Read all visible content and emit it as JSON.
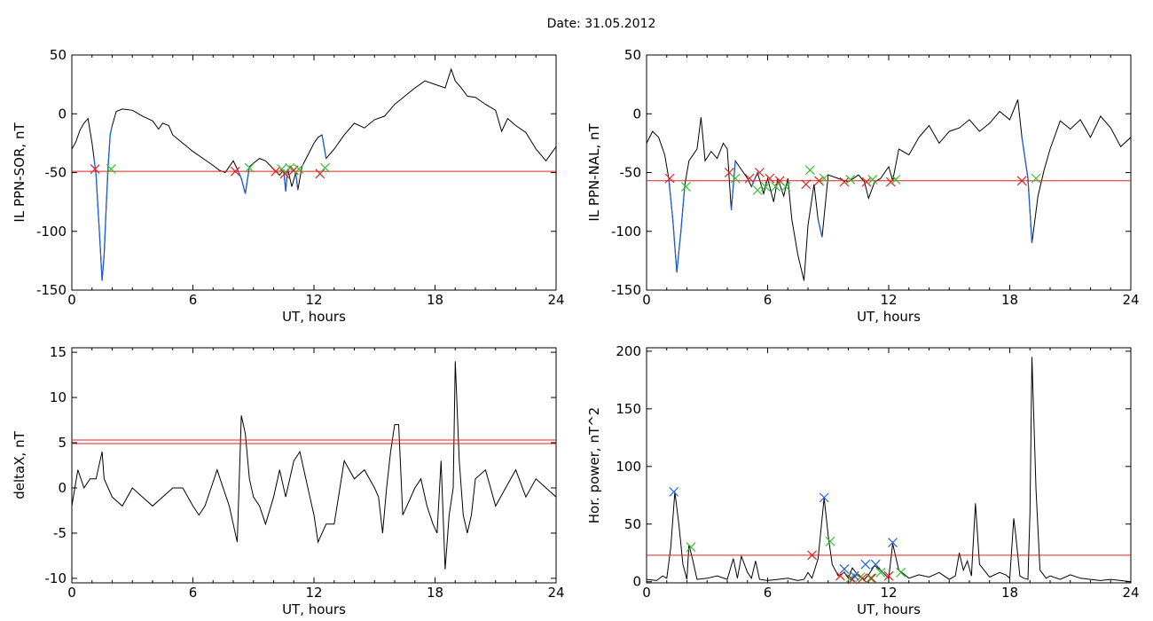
{
  "figure": {
    "title": "Date:  31.05.2012"
  },
  "chart_data": [
    {
      "id": "p1",
      "type": "line",
      "ylabel": "IL PPN-SOR, nT",
      "xlabel": "UT, hours",
      "xlim": [
        0,
        24
      ],
      "ylim": [
        -150,
        50
      ],
      "xticks": [
        "0",
        "6",
        "12",
        "18",
        "24"
      ],
      "yticks": [
        "50",
        "0",
        "-50",
        "-100",
        "-150"
      ],
      "threshold": -49,
      "colors": {
        "trace": "#000000",
        "event": "#1f5fd6",
        "threshold": "#e02020",
        "start": "#e02020",
        "end": "#30c030"
      },
      "series": [
        {
          "x": [
            0,
            0.2,
            0.4,
            0.6,
            0.8,
            1.0,
            1.1,
            1.2,
            1.4,
            1.5,
            1.6,
            1.7,
            1.8,
            1.9,
            2.0,
            2.2,
            2.5,
            3.0,
            3.5,
            4.0,
            4.3,
            4.5,
            4.8,
            5.0,
            5.5,
            6.0,
            6.5,
            7.0,
            7.3,
            7.6,
            8.0,
            8.2,
            8.4,
            8.6,
            8.8,
            9.0,
            9.3,
            9.6,
            10.0,
            10.3,
            10.5,
            10.6,
            10.7,
            10.9,
            11.1,
            11.2,
            11.4,
            11.7,
            12.0,
            12.2,
            12.4,
            12.6,
            13.0,
            13.5,
            14.0,
            14.5,
            15.0,
            15.5,
            16.0,
            16.5,
            17.0,
            17.5,
            18.0,
            18.5,
            18.8,
            19.0,
            19.3,
            19.6,
            20.0,
            20.5,
            21.0,
            21.3,
            21.6,
            22.0,
            22.5,
            23.0,
            23.5,
            24.0
          ],
          "y": [
            -30,
            -24,
            -14,
            -8,
            -4,
            -25,
            -38,
            -52,
            -110,
            -142,
            -120,
            -80,
            -45,
            -18,
            -10,
            2,
            4,
            3,
            -2,
            -6,
            -13,
            -8,
            -10,
            -18,
            -25,
            -32,
            -38,
            -44,
            -48,
            -50,
            -40,
            -47,
            -55,
            -68,
            -45,
            -42,
            -38,
            -40,
            -47,
            -52,
            -48,
            -66,
            -47,
            -62,
            -50,
            -65,
            -45,
            -35,
            -25,
            -20,
            -18,
            -38,
            -30,
            -18,
            -8,
            -12,
            -5,
            -2,
            8,
            15,
            22,
            28,
            25,
            22,
            38,
            28,
            22,
            15,
            14,
            8,
            3,
            -15,
            -4,
            -10,
            -16,
            -30,
            -40,
            -28
          ]
        }
      ],
      "events": [
        {
          "start": 1.15,
          "end": 1.95,
          "y_start": -47,
          "y_end": -47
        },
        {
          "start": 8.1,
          "end": 8.8,
          "y_start": -49,
          "y_end": -46
        },
        {
          "start": 10.1,
          "end": 10.4,
          "y_start": -49,
          "y_end": -47
        },
        {
          "start": 10.55,
          "end": 10.8,
          "y_start": -51,
          "y_end": -46
        },
        {
          "start": 11.0,
          "end": 11.25,
          "y_start": -48,
          "y_end": -47
        },
        {
          "start": 12.3,
          "end": 12.55,
          "y_start": -51,
          "y_end": -46
        }
      ]
    },
    {
      "id": "p2",
      "type": "line",
      "ylabel": "IL PPN-NAL, nT",
      "xlabel": "UT, hours",
      "xlim": [
        0,
        24
      ],
      "ylim": [
        -150,
        50
      ],
      "xticks": [
        "0",
        "6",
        "12",
        "18",
        "24"
      ],
      "yticks": [
        "50",
        "0",
        "-50",
        "-100",
        "-150"
      ],
      "threshold": -57,
      "colors": {
        "trace": "#000000",
        "event": "#1f5fd6",
        "threshold": "#e02020",
        "start": "#e02020",
        "end": "#30c030"
      },
      "series": [
        {
          "x": [
            0,
            0.3,
            0.6,
            0.9,
            1.1,
            1.3,
            1.5,
            1.7,
            1.9,
            2.1,
            2.5,
            2.7,
            2.9,
            3.2,
            3.5,
            3.8,
            4.0,
            4.2,
            4.4,
            4.6,
            5.0,
            5.2,
            5.5,
            5.8,
            6.0,
            6.3,
            6.5,
            6.8,
            7.0,
            7.2,
            7.5,
            7.8,
            8.0,
            8.3,
            8.5,
            8.7,
            9.0,
            9.5,
            10.0,
            10.5,
            10.8,
            11.0,
            11.3,
            11.6,
            12.0,
            12.2,
            12.5,
            13.0,
            13.5,
            14.0,
            14.5,
            15.0,
            15.5,
            16.0,
            16.5,
            17.0,
            17.5,
            18.0,
            18.4,
            18.6,
            18.9,
            19.1,
            19.4,
            19.7,
            20.0,
            20.5,
            21.0,
            21.5,
            22.0,
            22.5,
            23.0,
            23.5,
            24.0
          ],
          "y": [
            -25,
            -15,
            -20,
            -35,
            -55,
            -90,
            -135,
            -100,
            -60,
            -40,
            -30,
            -3,
            -40,
            -32,
            -38,
            -25,
            -30,
            -82,
            -40,
            -45,
            -55,
            -62,
            -50,
            -68,
            -55,
            -75,
            -55,
            -70,
            -55,
            -90,
            -120,
            -142,
            -95,
            -60,
            -90,
            -105,
            -52,
            -55,
            -58,
            -52,
            -58,
            -72,
            -58,
            -55,
            -45,
            -57,
            -30,
            -35,
            -20,
            -10,
            -25,
            -15,
            -12,
            -5,
            -15,
            -8,
            2,
            -5,
            12,
            -20,
            -55,
            -110,
            -70,
            -48,
            -30,
            -6,
            -13,
            -5,
            -20,
            -2,
            -12,
            -28,
            -20
          ]
        }
      ],
      "events": [
        {
          "start": 1.15,
          "end": 1.95,
          "y_start": -55,
          "y_end": -62
        },
        {
          "start": 4.1,
          "end": 4.4,
          "y_start": -50,
          "y_end": -55
        },
        {
          "start": 5.1,
          "end": 5.5,
          "y_start": -55,
          "y_end": -65
        },
        {
          "start": 5.6,
          "end": 5.9,
          "y_start": -50,
          "y_end": -62
        },
        {
          "start": 6.1,
          "end": 6.4,
          "y_start": -55,
          "y_end": -62
        },
        {
          "start": 6.6,
          "end": 6.9,
          "y_start": -57,
          "y_end": -62
        },
        {
          "start": 7.9,
          "end": 8.1,
          "y_start": -60,
          "y_end": -48
        },
        {
          "start": 8.55,
          "end": 8.8,
          "y_start": -57,
          "y_end": -55
        },
        {
          "start": 9.8,
          "end": 10.1,
          "y_start": -58,
          "y_end": -56
        },
        {
          "start": 10.9,
          "end": 11.2,
          "y_start": -58,
          "y_end": -56
        },
        {
          "start": 12.1,
          "end": 12.35,
          "y_start": -58,
          "y_end": -56
        },
        {
          "start": 18.6,
          "end": 19.3,
          "y_start": -57,
          "y_end": -55
        }
      ]
    },
    {
      "id": "p3",
      "type": "line",
      "ylabel": "deltaX, nT",
      "xlabel": "UT, hours",
      "xlim": [
        0,
        24
      ],
      "ylim": [
        -10.5,
        15.5
      ],
      "xticks": [
        "0",
        "6",
        "12",
        "18",
        "24"
      ],
      "yticks": [
        "15",
        "10",
        "5",
        "0",
        "-5",
        "-10"
      ],
      "thresholds": [
        5.3,
        4.9
      ],
      "colors": {
        "trace": "#000000",
        "threshold": "#e02020"
      },
      "series": [
        {
          "x": [
            0,
            0.3,
            0.6,
            0.9,
            1.2,
            1.5,
            1.6,
            1.8,
            2.0,
            2.5,
            3.0,
            3.5,
            4.0,
            4.5,
            5.0,
            5.5,
            6.0,
            6.3,
            6.6,
            6.9,
            7.2,
            7.5,
            7.8,
            8.0,
            8.2,
            8.4,
            8.6,
            8.8,
            9.0,
            9.3,
            9.6,
            10.0,
            10.3,
            10.6,
            11.0,
            11.3,
            11.5,
            11.8,
            12.0,
            12.2,
            12.4,
            12.6,
            13.0,
            13.5,
            14.0,
            14.5,
            15.0,
            15.2,
            15.4,
            15.6,
            15.8,
            16.0,
            16.2,
            16.4,
            16.6,
            17.0,
            17.3,
            17.6,
            17.9,
            18.1,
            18.3,
            18.5,
            18.7,
            18.9,
            19.0,
            19.2,
            19.4,
            19.6,
            19.8,
            20.0,
            20.5,
            21.0,
            21.5,
            22.0,
            22.5,
            23.0,
            23.5,
            24.0
          ],
          "y": [
            -2,
            2,
            0,
            1,
            1,
            4,
            1,
            0,
            -1,
            -2,
            0,
            -1,
            -2,
            -1,
            0,
            0,
            -2,
            -3,
            -2,
            0,
            2,
            0,
            -2,
            -4,
            -6,
            8,
            6,
            1,
            -1,
            -2,
            -4,
            -1,
            2,
            -1,
            3,
            4,
            2,
            -1,
            -3,
            -6,
            -5,
            -4,
            -4,
            3,
            1,
            2,
            0,
            -1,
            -5,
            0,
            4,
            7,
            7,
            -3,
            -2,
            0,
            1,
            -2,
            -4,
            -5,
            3,
            -9,
            -3,
            0,
            14,
            3,
            -3,
            -5,
            -3,
            1,
            2,
            -2,
            0,
            2,
            -1,
            1,
            0,
            -1
          ]
        }
      ]
    },
    {
      "id": "p4",
      "type": "line",
      "ylabel": "Hor. power, nT^2",
      "xlabel": "UT, hours",
      "xlim": [
        0,
        24
      ],
      "ylim": [
        -1,
        203
      ],
      "xticks": [
        "0",
        "6",
        "12",
        "18",
        "24"
      ],
      "yticks": [
        "200",
        "150",
        "100",
        "50",
        "0"
      ],
      "threshold": 23,
      "colors": {
        "trace": "#000000",
        "threshold": "#e02020",
        "peak": "#1f5fd6",
        "start": "#e02020",
        "end": "#30c030"
      },
      "series": [
        {
          "x": [
            0,
            0.5,
            0.8,
            1.0,
            1.2,
            1.4,
            1.6,
            1.8,
            2.0,
            2.1,
            2.3,
            2.5,
            3.0,
            3.5,
            4.0,
            4.3,
            4.5,
            4.7,
            5.0,
            5.2,
            5.4,
            5.6,
            6.0,
            6.5,
            7.0,
            7.5,
            7.8,
            8.0,
            8.2,
            8.5,
            8.8,
            9.0,
            9.2,
            9.5,
            9.8,
            10.0,
            10.2,
            10.5,
            10.8,
            11.0,
            11.3,
            11.6,
            12.0,
            12.2,
            12.5,
            12.8,
            13.0,
            13.5,
            14.0,
            14.5,
            15.0,
            15.3,
            15.5,
            15.7,
            15.9,
            16.1,
            16.3,
            16.5,
            17.0,
            17.5,
            17.8,
            18.0,
            18.2,
            18.3,
            18.5,
            18.7,
            18.9,
            19.0,
            19.1,
            19.3,
            19.5,
            19.8,
            20.0,
            20.5,
            21.0,
            21.5,
            22.0,
            22.5,
            23.0,
            23.5,
            24.0
          ],
          "y": [
            2,
            1,
            5,
            3,
            30,
            78,
            50,
            15,
            2,
            32,
            18,
            2,
            3,
            5,
            2,
            20,
            3,
            22,
            8,
            3,
            18,
            2,
            1,
            2,
            3,
            1,
            2,
            8,
            3,
            20,
            73,
            40,
            15,
            5,
            8,
            3,
            12,
            5,
            2,
            6,
            14,
            10,
            3,
            33,
            10,
            6,
            3,
            6,
            4,
            8,
            2,
            5,
            25,
            10,
            18,
            5,
            68,
            15,
            4,
            8,
            6,
            3,
            55,
            40,
            5,
            3,
            2,
            60,
            195,
            80,
            10,
            3,
            5,
            2,
            6,
            3,
            2,
            1,
            2,
            1,
            0
          ]
        }
      ],
      "events": [
        {
          "peak": 1.35,
          "peak_y": 78,
          "start_y": 23,
          "end": 2.2,
          "end_y": 30
        },
        {
          "peak": 8.8,
          "peak_y": 73,
          "start": 8.2,
          "start_y": 23,
          "end": 9.1,
          "end_y": 35
        },
        {
          "peak": 9.8,
          "peak_y": 11,
          "start": 9.6,
          "start_y": 5,
          "end": 10.1,
          "end_y": 3
        },
        {
          "peak": 10.3,
          "peak_y": 5,
          "start": 10.2,
          "start_y": 2,
          "end": 10.6,
          "end_y": 4
        },
        {
          "peak": 10.85,
          "peak_y": 15,
          "start": 10.7,
          "start_y": 3,
          "end": 11.1,
          "end_y": 3
        },
        {
          "peak": 11.35,
          "peak_y": 15,
          "start": 11.15,
          "start_y": 3,
          "end": 11.6,
          "end_y": 8
        },
        {
          "peak": 12.2,
          "peak_y": 34,
          "start": 12.0,
          "start_y": 5,
          "end": 12.6,
          "end_y": 8
        }
      ]
    }
  ]
}
